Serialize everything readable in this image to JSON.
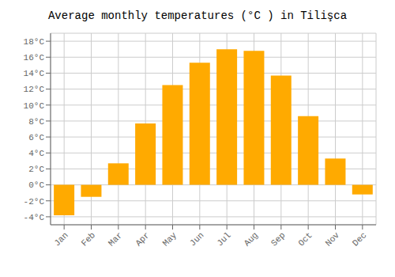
{
  "chart_data": {
    "type": "bar",
    "title": "Average monthly temperatures (°C ) in Tilişca",
    "categories": [
      "Jan",
      "Feb",
      "Mar",
      "Apr",
      "May",
      "Jun",
      "Jul",
      "Aug",
      "Sep",
      "Oct",
      "Nov",
      "Dec"
    ],
    "values": [
      -3.8,
      -1.5,
      2.7,
      7.7,
      12.5,
      15.3,
      17.0,
      16.8,
      13.7,
      8.6,
      3.3,
      -1.2
    ],
    "color": "#FFAA00",
    "ylim": [
      -5,
      19
    ],
    "yticks": [
      {
        "value": -4,
        "label": "-4°C"
      },
      {
        "value": -2,
        "label": "-2°C"
      },
      {
        "value": 0,
        "label": "0°C"
      },
      {
        "value": 2,
        "label": "2°C"
      },
      {
        "value": 4,
        "label": "4°C"
      },
      {
        "value": 6,
        "label": "6°C"
      },
      {
        "value": 8,
        "label": "8°C"
      },
      {
        "value": 10,
        "label": "10°C"
      },
      {
        "value": 12,
        "label": "12°C"
      },
      {
        "value": 14,
        "label": "14°C"
      },
      {
        "value": 16,
        "label": "16°C"
      },
      {
        "value": 18,
        "label": "18°C"
      }
    ],
    "grid": true
  }
}
